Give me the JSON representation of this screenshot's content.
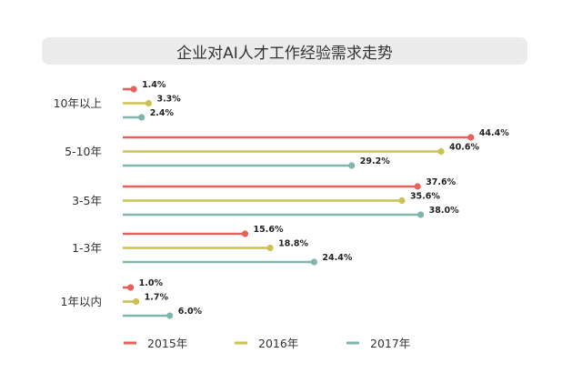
{
  "chart_data": {
    "type": "bar",
    "orientation": "horizontal",
    "title": "企业对AI人才工作经验需求走势",
    "categories": [
      "10年以上",
      "5-10年",
      "3-5年",
      "1-3年",
      "1年以内"
    ],
    "series": [
      {
        "name": "2015年",
        "color": "#e8605a",
        "values": [
          1.4,
          44.4,
          37.6,
          15.6,
          1.0
        ],
        "labels": [
          "1.4%",
          "44.4%",
          "37.6%",
          "15.6%",
          "1.0%"
        ]
      },
      {
        "name": "2016年",
        "color": "#cdc14f",
        "values": [
          3.3,
          40.6,
          35.6,
          18.8,
          1.7
        ],
        "labels": [
          "3.3%",
          "40.6%",
          "35.6%",
          "18.8%",
          "1.7%"
        ]
      },
      {
        "name": "2017年",
        "color": "#7fb5ad",
        "values": [
          2.4,
          29.2,
          38.0,
          24.4,
          6.0
        ],
        "labels": [
          "2.4%",
          "29.2%",
          "38.0%",
          "24.4%",
          "6.0%"
        ]
      }
    ],
    "xlim": [
      0,
      45
    ],
    "grid": false,
    "legend_position": "bottom"
  }
}
